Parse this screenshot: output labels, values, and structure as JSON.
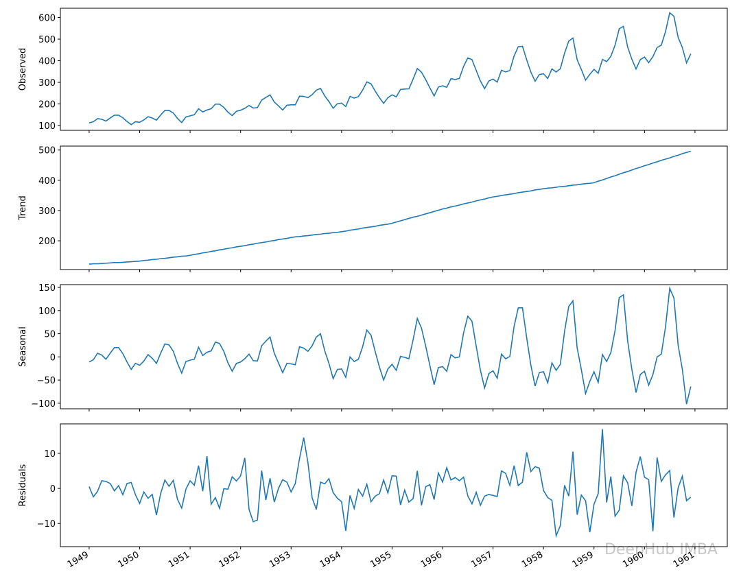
{
  "watermark": "DeepHub IMBA",
  "chart_data": [
    {
      "type": "line",
      "ylabel": "Observed",
      "color": "#1f77b4",
      "x": [
        1949,
        1949.083,
        1949.167,
        1949.25,
        1949.333,
        1949.417,
        1949.5,
        1949.583,
        1949.667,
        1949.75,
        1949.833,
        1949.917,
        1950,
        1950.083,
        1950.167,
        1950.25,
        1950.333,
        1950.417,
        1950.5,
        1950.583,
        1950.667,
        1950.75,
        1950.833,
        1950.917,
        1951,
        1951.083,
        1951.167,
        1951.25,
        1951.333,
        1951.417,
        1951.5,
        1951.583,
        1951.667,
        1951.75,
        1951.833,
        1951.917,
        1952,
        1952.083,
        1952.167,
        1952.25,
        1952.333,
        1952.417,
        1952.5,
        1952.583,
        1952.667,
        1952.75,
        1952.833,
        1952.917,
        1953,
        1953.083,
        1953.167,
        1953.25,
        1953.333,
        1953.417,
        1953.5,
        1953.583,
        1953.667,
        1953.75,
        1953.833,
        1953.917,
        1954,
        1954.083,
        1954.167,
        1954.25,
        1954.333,
        1954.417,
        1954.5,
        1954.583,
        1954.667,
        1954.75,
        1954.833,
        1954.917,
        1955,
        1955.083,
        1955.167,
        1955.25,
        1955.333,
        1955.417,
        1955.5,
        1955.583,
        1955.667,
        1955.75,
        1955.833,
        1955.917,
        1956,
        1956.083,
        1956.167,
        1956.25,
        1956.333,
        1956.417,
        1956.5,
        1956.583,
        1956.667,
        1956.75,
        1956.833,
        1956.917,
        1957,
        1957.083,
        1957.167,
        1957.25,
        1957.333,
        1957.417,
        1957.5,
        1957.583,
        1957.667,
        1957.75,
        1957.833,
        1957.917,
        1958,
        1958.083,
        1958.167,
        1958.25,
        1958.333,
        1958.417,
        1958.5,
        1958.583,
        1958.667,
        1958.75,
        1958.833,
        1958.917,
        1959,
        1959.083,
        1959.167,
        1959.25,
        1959.333,
        1959.417,
        1959.5,
        1959.583,
        1959.667,
        1959.75,
        1959.833,
        1959.917,
        1960,
        1960.083,
        1960.167,
        1960.25,
        1960.333,
        1960.417,
        1960.5,
        1960.583,
        1960.667,
        1960.75,
        1960.833,
        1960.917
      ],
      "values": [
        112,
        118,
        132,
        129,
        121,
        135,
        148,
        148,
        136,
        119,
        104,
        118,
        115,
        126,
        141,
        135,
        125,
        149,
        170,
        170,
        158,
        133,
        114,
        140,
        145,
        150,
        178,
        163,
        172,
        178,
        199,
        199,
        184,
        162,
        146,
        166,
        171,
        180,
        193,
        181,
        183,
        218,
        230,
        242,
        209,
        191,
        172,
        194,
        196,
        196,
        236,
        235,
        229,
        243,
        264,
        272,
        237,
        211,
        180,
        201,
        204,
        188,
        235,
        227,
        234,
        264,
        302,
        293,
        259,
        229,
        203,
        229,
        242,
        233,
        267,
        269,
        270,
        315,
        364,
        347,
        312,
        274,
        237,
        278,
        284,
        277,
        317,
        313,
        318,
        374,
        413,
        405,
        355,
        306,
        271,
        306,
        315,
        301,
        356,
        348,
        355,
        422,
        465,
        467,
        404,
        347,
        305,
        336,
        340,
        318,
        362,
        348,
        363,
        435,
        491,
        505,
        404,
        359,
        310,
        337,
        360,
        342,
        406,
        396,
        420,
        472,
        548,
        559,
        463,
        407,
        362,
        405,
        417,
        391,
        419,
        461,
        472,
        535,
        622,
        606,
        508,
        461,
        390,
        432
      ],
      "xlim": [
        1948.43,
        1961.64
      ],
      "xticks": [
        1949,
        1950,
        1951,
        1952,
        1953,
        1954,
        1955,
        1956,
        1957,
        1958,
        1959,
        1960,
        1961
      ],
      "ylim": [
        78,
        643
      ],
      "yticks": [
        100,
        200,
        300,
        400,
        500,
        600
      ]
    },
    {
      "type": "line",
      "ylabel": "Trend",
      "color": "#1f77b4",
      "x": [
        1949,
        1949.083,
        1949.167,
        1949.25,
        1949.333,
        1949.417,
        1949.5,
        1949.583,
        1949.667,
        1949.75,
        1949.833,
        1949.917,
        1950,
        1950.083,
        1950.167,
        1950.25,
        1950.333,
        1950.417,
        1950.5,
        1950.583,
        1950.667,
        1950.75,
        1950.833,
        1950.917,
        1951,
        1951.083,
        1951.167,
        1951.25,
        1951.333,
        1951.417,
        1951.5,
        1951.583,
        1951.667,
        1951.75,
        1951.833,
        1951.917,
        1952,
        1952.083,
        1952.167,
        1952.25,
        1952.333,
        1952.417,
        1952.5,
        1952.583,
        1952.667,
        1952.75,
        1952.833,
        1952.917,
        1953,
        1953.083,
        1953.167,
        1953.25,
        1953.333,
        1953.417,
        1953.5,
        1953.583,
        1953.667,
        1953.75,
        1953.833,
        1953.917,
        1954,
        1954.083,
        1954.167,
        1954.25,
        1954.333,
        1954.417,
        1954.5,
        1954.583,
        1954.667,
        1954.75,
        1954.833,
        1954.917,
        1955,
        1955.083,
        1955.167,
        1955.25,
        1955.333,
        1955.417,
        1955.5,
        1955.583,
        1955.667,
        1955.75,
        1955.833,
        1955.917,
        1956,
        1956.083,
        1956.167,
        1956.25,
        1956.333,
        1956.417,
        1956.5,
        1956.583,
        1956.667,
        1956.75,
        1956.833,
        1956.917,
        1957,
        1957.083,
        1957.167,
        1957.25,
        1957.333,
        1957.417,
        1957.5,
        1957.583,
        1957.667,
        1957.75,
        1957.833,
        1957.917,
        1958,
        1958.083,
        1958.167,
        1958.25,
        1958.333,
        1958.417,
        1958.5,
        1958.583,
        1958.667,
        1958.75,
        1958.833,
        1958.917,
        1959,
        1959.083,
        1959.167,
        1959.25,
        1959.333,
        1959.417,
        1959.5,
        1959.583,
        1959.667,
        1959.75,
        1959.833,
        1959.917,
        1960,
        1960.083,
        1960.167,
        1960.25,
        1960.333,
        1960.417,
        1960.5,
        1960.583,
        1960.667,
        1960.75,
        1960.833,
        1960.917
      ],
      "values": [
        123,
        124,
        124,
        125,
        126,
        127,
        128,
        128,
        129,
        130,
        131,
        132,
        133,
        135,
        136,
        138,
        139,
        141,
        142,
        144,
        146,
        147,
        149,
        150,
        152,
        155,
        157,
        160,
        162,
        165,
        167,
        170,
        172,
        175,
        177,
        180,
        182,
        184,
        187,
        189,
        192,
        194,
        196,
        199,
        201,
        204,
        206,
        208,
        211,
        213,
        214,
        216,
        217,
        219,
        221,
        222,
        224,
        225,
        227,
        228,
        230,
        232,
        235,
        237,
        239,
        242,
        244,
        246,
        248,
        251,
        253,
        255,
        258,
        262,
        266,
        270,
        274,
        278,
        281,
        285,
        289,
        293,
        297,
        301,
        305,
        308,
        312,
        315,
        318,
        322,
        325,
        328,
        332,
        335,
        338,
        342,
        345,
        347,
        350,
        352,
        354,
        356,
        359,
        361,
        363,
        365,
        368,
        370,
        372,
        374,
        375,
        377,
        379,
        380,
        382,
        384,
        385,
        387,
        389,
        390,
        392,
        397,
        401,
        406,
        411,
        415,
        420,
        425,
        429,
        434,
        439,
        443,
        448,
        452,
        457,
        461,
        466,
        470,
        474,
        479,
        483,
        488,
        492,
        496
      ],
      "xlim": [
        1948.43,
        1961.64
      ],
      "xticks": [
        1949,
        1950,
        1951,
        1952,
        1953,
        1954,
        1955,
        1956,
        1957,
        1958,
        1959,
        1960,
        1961
      ],
      "ylim": [
        105,
        513
      ],
      "yticks": [
        200,
        300,
        400,
        500
      ]
    },
    {
      "type": "line",
      "ylabel": "Seasonal",
      "color": "#1f77b4",
      "x": [
        1949,
        1949.083,
        1949.167,
        1949.25,
        1949.333,
        1949.417,
        1949.5,
        1949.583,
        1949.667,
        1949.75,
        1949.833,
        1949.917,
        1950,
        1950.083,
        1950.167,
        1950.25,
        1950.333,
        1950.417,
        1950.5,
        1950.583,
        1950.667,
        1950.75,
        1950.833,
        1950.917,
        1951,
        1951.083,
        1951.167,
        1951.25,
        1951.333,
        1951.417,
        1951.5,
        1951.583,
        1951.667,
        1951.75,
        1951.833,
        1951.917,
        1952,
        1952.083,
        1952.167,
        1952.25,
        1952.333,
        1952.417,
        1952.5,
        1952.583,
        1952.667,
        1952.75,
        1952.833,
        1952.917,
        1953,
        1953.083,
        1953.167,
        1953.25,
        1953.333,
        1953.417,
        1953.5,
        1953.583,
        1953.667,
        1953.75,
        1953.833,
        1953.917,
        1954,
        1954.083,
        1954.167,
        1954.25,
        1954.333,
        1954.417,
        1954.5,
        1954.583,
        1954.667,
        1954.75,
        1954.833,
        1954.917,
        1955,
        1955.083,
        1955.167,
        1955.25,
        1955.333,
        1955.417,
        1955.5,
        1955.583,
        1955.667,
        1955.75,
        1955.833,
        1955.917,
        1956,
        1956.083,
        1956.167,
        1956.25,
        1956.333,
        1956.417,
        1956.5,
        1956.583,
        1956.667,
        1956.75,
        1956.833,
        1956.917,
        1957,
        1957.083,
        1957.167,
        1957.25,
        1957.333,
        1957.417,
        1957.5,
        1957.583,
        1957.667,
        1957.75,
        1957.833,
        1957.917,
        1958,
        1958.083,
        1958.167,
        1958.25,
        1958.333,
        1958.417,
        1958.5,
        1958.583,
        1958.667,
        1958.75,
        1958.833,
        1958.917,
        1959,
        1959.083,
        1959.167,
        1959.25,
        1959.333,
        1959.417,
        1959.5,
        1959.583,
        1959.667,
        1959.75,
        1959.833,
        1959.917,
        1960,
        1960.083,
        1960.167,
        1960.25,
        1960.333,
        1960.417,
        1960.5,
        1960.583,
        1960.667,
        1960.75,
        1960.833,
        1960.917
      ],
      "values": [
        -11,
        -6,
        8,
        4,
        -5,
        8,
        20,
        20,
        7,
        -11,
        -27,
        -14,
        -18,
        -9,
        5,
        -3,
        -14,
        8,
        28,
        26,
        12,
        -14,
        -35,
        -10,
        -7,
        -5,
        21,
        3,
        10,
        13,
        32,
        29,
        12,
        -13,
        -31,
        -14,
        -11,
        -4,
        6,
        -8,
        -9,
        24,
        34,
        43,
        8,
        -13,
        -34,
        -14,
        -15,
        -17,
        22,
        19,
        12,
        24,
        43,
        50,
        13,
        -14,
        -47,
        -27,
        -26,
        -44,
        0,
        -10,
        -5,
        22,
        58,
        47,
        11,
        -22,
        -50,
        -26,
        -16,
        -29,
        1,
        -1,
        -4,
        37,
        83,
        62,
        23,
        -19,
        -60,
        -23,
        -21,
        -31,
        5,
        -2,
        0,
        52,
        88,
        77,
        23,
        -29,
        -67,
        -36,
        -30,
        -46,
        6,
        -4,
        1,
        66,
        106,
        106,
        41,
        -18,
        -63,
        -34,
        -32,
        -56,
        -13,
        -29,
        -16,
        55,
        109,
        121,
        19,
        -28,
        -79,
        -53,
        -32,
        -55,
        5,
        -10,
        9,
        57,
        128,
        134,
        34,
        -27,
        -77,
        -38,
        -31,
        -61,
        -38,
        0,
        6,
        65,
        148,
        127,
        25,
        -27,
        -102,
        -64
      ],
      "xlim": [
        1948.43,
        1961.64
      ],
      "xticks": [
        1949,
        1950,
        1951,
        1952,
        1953,
        1954,
        1955,
        1956,
        1957,
        1958,
        1959,
        1960,
        1961
      ],
      "ylim": [
        -112,
        156
      ],
      "yticks": [
        150,
        100,
        50,
        0,
        {
          "value": -50,
          "label": "−50"
        },
        {
          "value": -100,
          "label": "−100"
        }
      ]
    },
    {
      "type": "line",
      "ylabel": "Residuals",
      "color": "#1f77b4",
      "x": [
        1949,
        1949.083,
        1949.167,
        1949.25,
        1949.333,
        1949.417,
        1949.5,
        1949.583,
        1949.667,
        1949.75,
        1949.833,
        1949.917,
        1950,
        1950.083,
        1950.167,
        1950.25,
        1950.333,
        1950.417,
        1950.5,
        1950.583,
        1950.667,
        1950.75,
        1950.833,
        1950.917,
        1951,
        1951.083,
        1951.167,
        1951.25,
        1951.333,
        1951.417,
        1951.5,
        1951.583,
        1951.667,
        1951.75,
        1951.833,
        1951.917,
        1952,
        1952.083,
        1952.167,
        1952.25,
        1952.333,
        1952.417,
        1952.5,
        1952.583,
        1952.667,
        1952.75,
        1952.833,
        1952.917,
        1953,
        1953.083,
        1953.167,
        1953.25,
        1953.333,
        1953.417,
        1953.5,
        1953.583,
        1953.667,
        1953.75,
        1953.833,
        1953.917,
        1954,
        1954.083,
        1954.167,
        1954.25,
        1954.333,
        1954.417,
        1954.5,
        1954.583,
        1954.667,
        1954.75,
        1954.833,
        1954.917,
        1955,
        1955.083,
        1955.167,
        1955.25,
        1955.333,
        1955.417,
        1955.5,
        1955.583,
        1955.667,
        1955.75,
        1955.833,
        1955.917,
        1956,
        1956.083,
        1956.167,
        1956.25,
        1956.333,
        1956.417,
        1956.5,
        1956.583,
        1956.667,
        1956.75,
        1956.833,
        1956.917,
        1957,
        1957.083,
        1957.167,
        1957.25,
        1957.333,
        1957.417,
        1957.5,
        1957.583,
        1957.667,
        1957.75,
        1957.833,
        1957.917,
        1958,
        1958.083,
        1958.167,
        1958.25,
        1958.333,
        1958.417,
        1958.5,
        1958.583,
        1958.667,
        1958.75,
        1958.833,
        1958.917,
        1959,
        1959.083,
        1959.167,
        1959.25,
        1959.333,
        1959.417,
        1959.5,
        1959.583,
        1959.667,
        1959.75,
        1959.833,
        1959.917,
        1960,
        1960.083,
        1960.167,
        1960.25,
        1960.333,
        1960.417,
        1960.5,
        1960.583,
        1960.667,
        1960.75,
        1960.833,
        1960.917
      ],
      "values": [
        0.5,
        -2.4,
        -0.8,
        2.2,
        2,
        1.4,
        -0.7,
        0.8,
        -1.8,
        1.4,
        1.7,
        -1.8,
        -4.3,
        -1,
        -2.8,
        -1.7,
        -7.6,
        -1.4,
        2.4,
        0.6,
        2.3,
        -3.1,
        -5.6,
        -0.2,
        2.2,
        0.9,
        6.5,
        -0.8,
        9.2,
        -4.5,
        -2.6,
        -5.7,
        -0.1,
        -0.2,
        3.3,
        2.1,
        3.6,
        8.7,
        -6,
        -9.5,
        -9,
        5.1,
        -3.3,
        2.9,
        -3.9,
        0,
        2.5,
        1.8,
        -1,
        1.4,
        8.5,
        14.5,
        7.4,
        -2.7,
        -6,
        1.8,
        1.3,
        2.8,
        -1.2,
        -2.8,
        -3.8,
        -12.1,
        -2,
        -5.7,
        -0.3,
        -2.2,
        1.2,
        -3.8,
        -2.2,
        -1.5,
        2.4,
        -1.3,
        3.6,
        3.5,
        -4.7,
        -0.5,
        -3.9,
        -2.9,
        5,
        -4.8,
        0.5,
        1.1,
        -3.2,
        4.4,
        1.8,
        5.9,
        2.4,
        3.1,
        2.2,
        3.2,
        -2.1,
        -4.4,
        -1.1,
        -4.8,
        -2.2,
        -1.7,
        -2,
        -2.3,
        5,
        4.3,
        0.9,
        6.5,
        0.8,
        1.8,
        10.3,
        4.8,
        6.2,
        5.8,
        -0.6,
        -2.6,
        -3.4,
        -13.5,
        -10.6,
        0.9,
        -2.2,
        10.5,
        -7.5,
        -1.9,
        -3.5,
        -12.5,
        -4.5,
        -1.5,
        16.9,
        -4,
        3.4,
        -7.9,
        -6.2,
        3.6,
        1.6,
        -5,
        4.6,
        9.1,
        3.2,
        2.5,
        -12.2,
        8.8,
        2,
        3.9,
        5.1,
        -8.3,
        0.2,
        3.5,
        -3.5,
        -2.5
      ],
      "xlim": [
        1948.43,
        1961.64
      ],
      "xticks": [
        1949,
        1950,
        1951,
        1952,
        1953,
        1954,
        1955,
        1956,
        1957,
        1958,
        1959,
        1960,
        1961
      ],
      "ylim": [
        -16.6,
        18.4
      ],
      "yticks": [
        {
          "value": -10,
          "label": "−10"
        },
        0,
        10
      ]
    }
  ]
}
